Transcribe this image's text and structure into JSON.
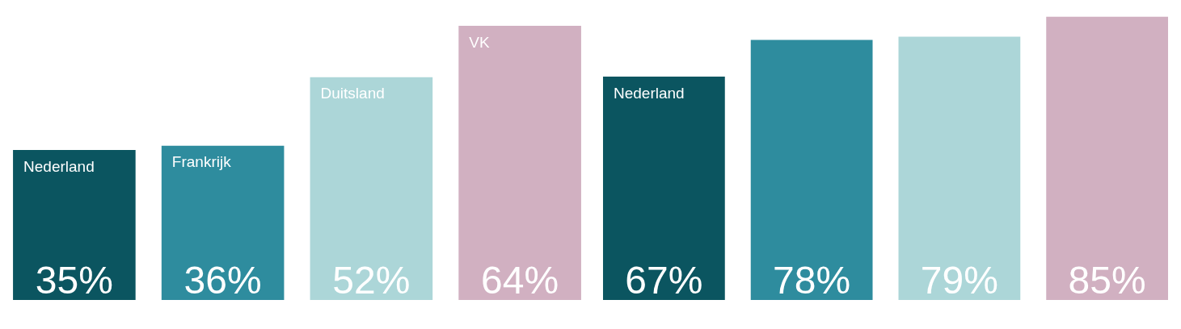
{
  "chart_data": [
    {
      "type": "bar",
      "categories": [
        "Nederland",
        "Frankrijk",
        "Duitsland",
        "VK"
      ],
      "values": [
        35,
        36,
        52,
        64
      ],
      "value_labels": [
        "35%",
        "36%",
        "52%",
        "64%"
      ],
      "colors": [
        "#0b5560",
        "#2e8c9e",
        "#acd6d8",
        "#d1b0c1"
      ]
    },
    {
      "type": "bar",
      "categories": [
        "Nederland",
        null,
        null,
        null
      ],
      "values": [
        67,
        78,
        79,
        85
      ],
      "value_labels": [
        "67%",
        "78%",
        "79%",
        "85%"
      ],
      "colors": [
        "#0b5560",
        "#2e8c9e",
        "#acd6d8",
        "#d1b0c1"
      ]
    }
  ]
}
